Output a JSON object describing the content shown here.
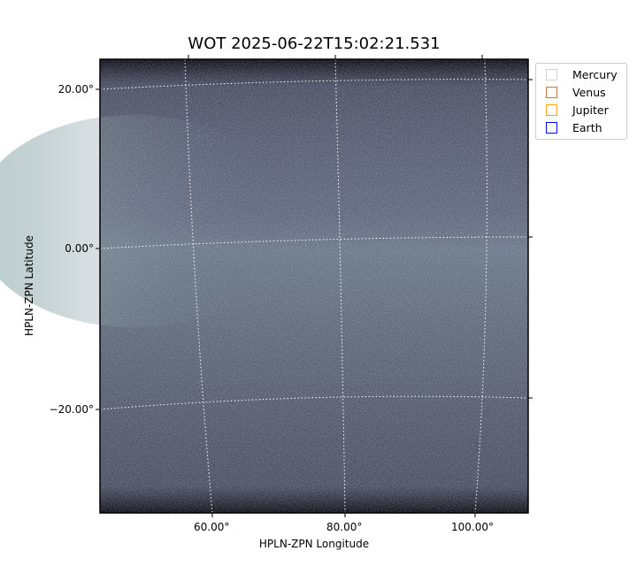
{
  "chart_data": {
    "type": "heatmap",
    "title": "WOT 2025-06-22T15:02:21.531",
    "xlabel": "HPLN-ZPN Longitude",
    "ylabel": "HPLN-ZPN Latitude",
    "x_ticks": [
      "60.00°",
      "80.00°",
      "100.00°"
    ],
    "y_ticks": [
      "20.00°",
      "0.00°",
      "−20.00°"
    ],
    "grid": true,
    "colormap": "bone",
    "legend_position": "outside-top-right",
    "legend": [
      {
        "label": "Mercury",
        "color": "#d3d3d3"
      },
      {
        "label": "Venus",
        "color": "#c8733a"
      },
      {
        "label": "Jupiter",
        "color": "#ffa500"
      },
      {
        "label": "Earth",
        "color": "#0000ff"
      }
    ]
  }
}
